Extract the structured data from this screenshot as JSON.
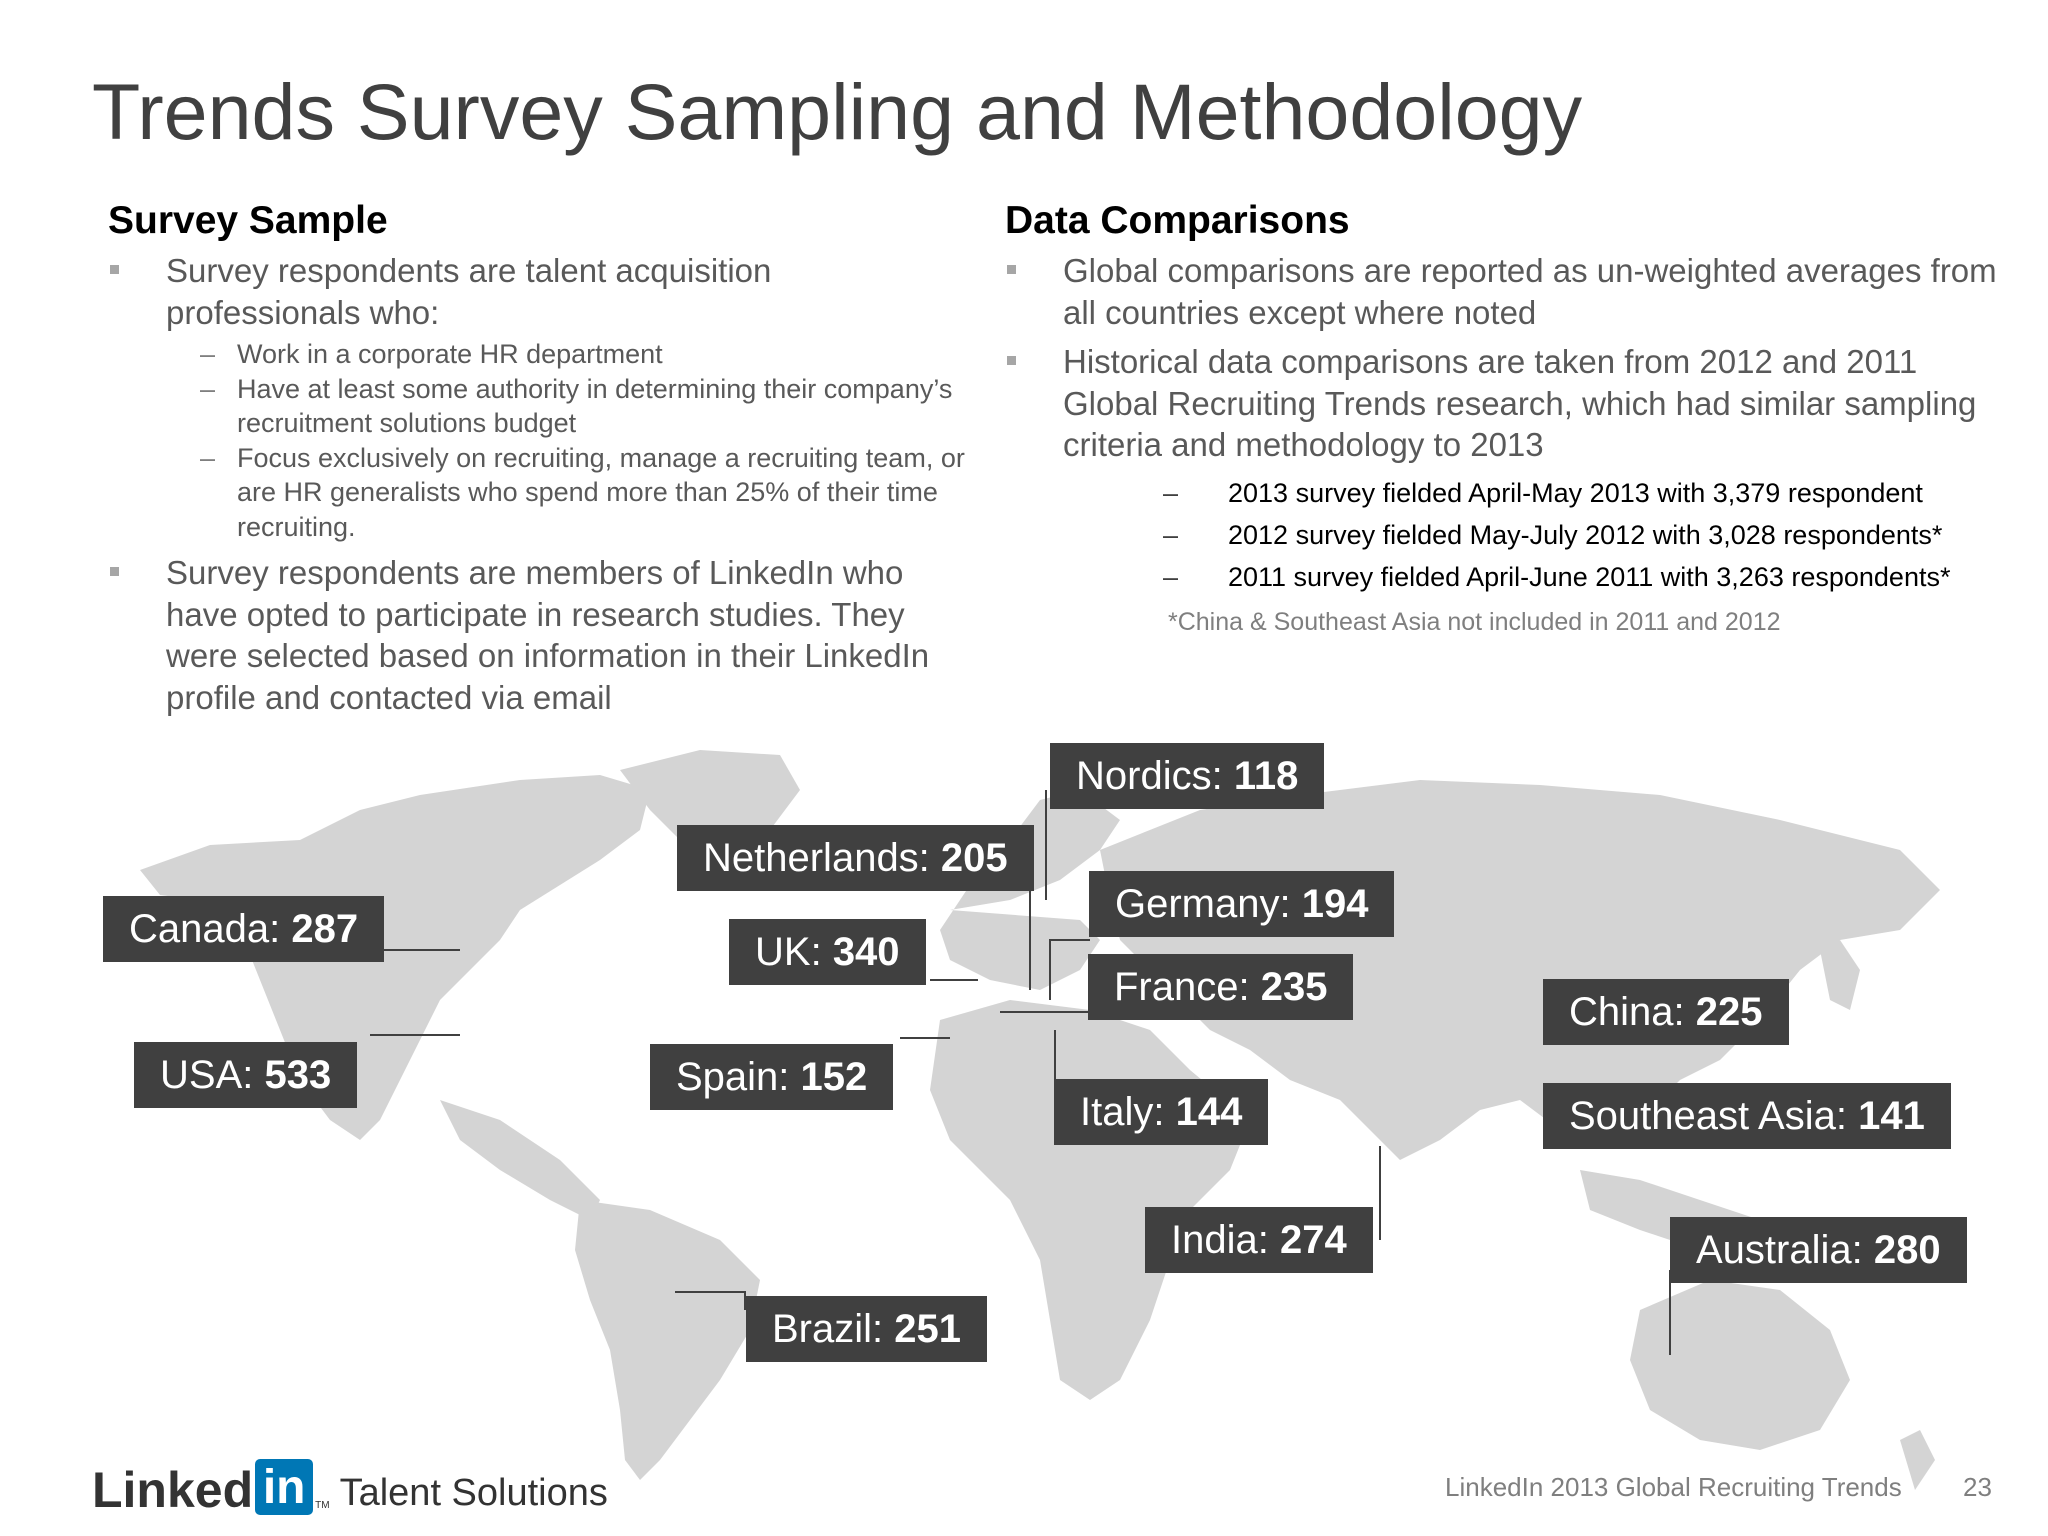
{
  "title": "Trends Survey Sampling and Methodology",
  "survey_sample": {
    "heading": "Survey Sample",
    "bullet1": "Survey respondents are talent acquisition professionals who:",
    "sub_items": [
      "Work in a corporate HR department",
      "Have at least some authority in determining their company’s recruitment solutions budget",
      "Focus exclusively on recruiting, manage a recruiting team, or are HR generalists who spend more than 25% of their time recruiting."
    ],
    "bullet2": "Survey respondents are members of LinkedIn who have opted to participate in research studies. They were selected based on information in their LinkedIn profile and contacted via email"
  },
  "data_comparisons": {
    "heading": "Data Comparisons",
    "bullet1": "Global comparisons are reported as un-weighted averages from all countries except where noted",
    "bullet2": "Historical data comparisons are taken from 2012 and 2011 Global Recruiting Trends research, which had similar sampling criteria and methodology to 2013",
    "sub_items": [
      "2013 survey fielded April-May 2013 with 3,379 respondent",
      "2012 survey fielded May-July 2012 with 3,028 respondents*",
      "2011 survey fielded April-June 2011 with 3,263 respondents*"
    ],
    "note": "*China & Southeast Asia not included in 2011 and 2012"
  },
  "map_labels": {
    "canada": {
      "name": "Canada:",
      "value": "287"
    },
    "usa": {
      "name": "USA:",
      "value": "533"
    },
    "netherlands": {
      "name": "Netherlands:",
      "value": "205"
    },
    "uk": {
      "name": "UK:",
      "value": "340"
    },
    "spain": {
      "name": "Spain:",
      "value": "152"
    },
    "nordics": {
      "name": "Nordics:",
      "value": "118"
    },
    "germany": {
      "name": "Germany:",
      "value": "194"
    },
    "france": {
      "name": "France:",
      "value": "235"
    },
    "italy": {
      "name": "Italy:",
      "value": "144"
    },
    "china": {
      "name": "China:",
      "value": "225"
    },
    "southeast_asia": {
      "name": "Southeast Asia:",
      "value": "141"
    },
    "india": {
      "name": "India:",
      "value": "274"
    },
    "australia": {
      "name": "Australia:",
      "value": "280"
    },
    "brazil": {
      "name": "Brazil:",
      "value": "251"
    }
  },
  "colors": {
    "label_bg": "#404040",
    "map_land": "#d4d4d4",
    "linkedin_blue": "#0077b5"
  },
  "footer": {
    "logo_text": "Linked",
    "logo_box": "in",
    "tm": "TM",
    "talent": "Talent Solutions",
    "source": "LinkedIn 2013 Global Recruiting Trends",
    "page": "23"
  }
}
